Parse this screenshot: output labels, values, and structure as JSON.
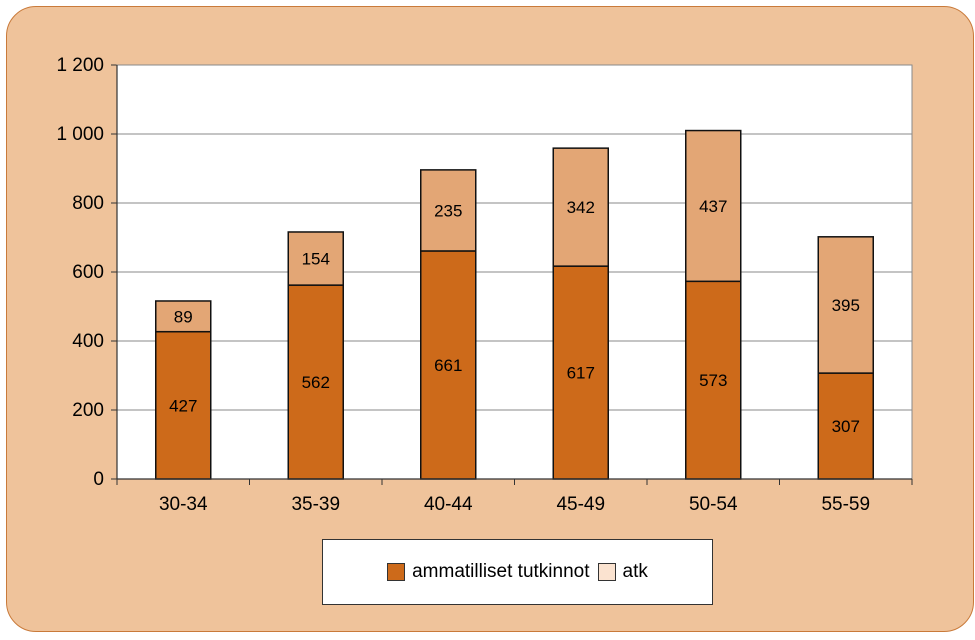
{
  "chart_data": {
    "type": "bar",
    "stacked": true,
    "categories": [
      "30-34",
      "35-39",
      "40-44",
      "45-49",
      "50-54",
      "55-59"
    ],
    "series": [
      {
        "name": "ammatilliset tutkinnot",
        "values": [
          427,
          562,
          661,
          617,
          573,
          307
        ],
        "color": "#cd6a1a"
      },
      {
        "name": "atk",
        "values": [
          89,
          154,
          235,
          342,
          437,
          395
        ],
        "color": "#e3a675"
      }
    ],
    "legend_swatch_colors": [
      "#cd6a1a",
      "#fbe3d0"
    ],
    "ylim": [
      0,
      1200
    ],
    "yticks": [
      0,
      200,
      400,
      600,
      800,
      1000,
      1200
    ],
    "ytick_labels": [
      "0",
      "200",
      "400",
      "600",
      "800",
      "1 000",
      "1 200"
    ],
    "grid": true,
    "legend_position": "bottom",
    "title": "",
    "xlabel": "",
    "ylabel": ""
  }
}
